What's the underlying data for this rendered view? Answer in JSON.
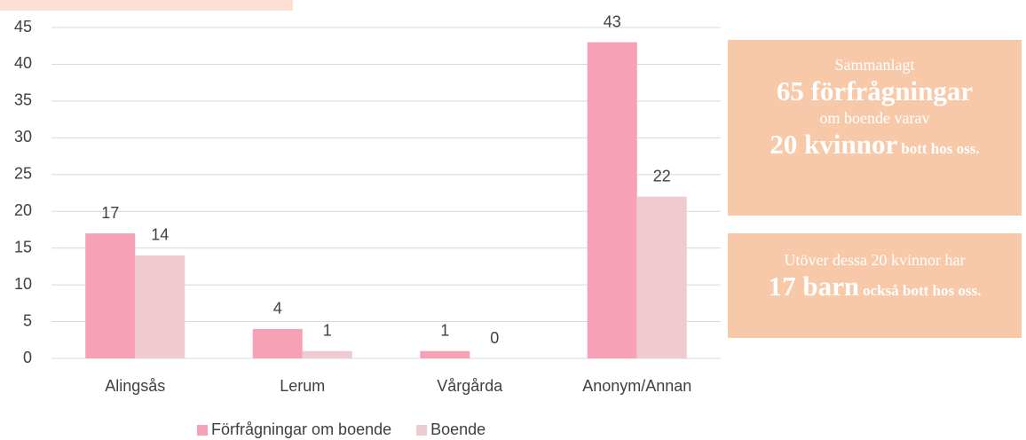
{
  "chart_data": {
    "type": "bar",
    "categories": [
      "Alingsås",
      "Lerum",
      "Vårgårda",
      "Anonym/Annan"
    ],
    "series": [
      {
        "name": "Förfrågningar om boende",
        "color": "#f7a1b6",
        "values": [
          17,
          4,
          1,
          43
        ]
      },
      {
        "name": "Boende",
        "color": "#efcad0",
        "values": [
          14,
          1,
          0,
          22
        ]
      }
    ],
    "ylim": [
      0,
      45
    ],
    "yticks": [
      0,
      5,
      10,
      15,
      20,
      25,
      30,
      35,
      40,
      45
    ],
    "grid": true,
    "legend": "bottom"
  },
  "info_boxes": [
    {
      "line1": "Sammanlagt",
      "line2": "65 förfrågningar",
      "line3": "om boende varav",
      "line4": "20 kvinnor",
      "line4_small": "bott hos oss."
    },
    {
      "line1": "Utöver dessa 20 kvinnor har",
      "line2": "17 barn",
      "line2_small": "också bott hos oss."
    }
  ]
}
